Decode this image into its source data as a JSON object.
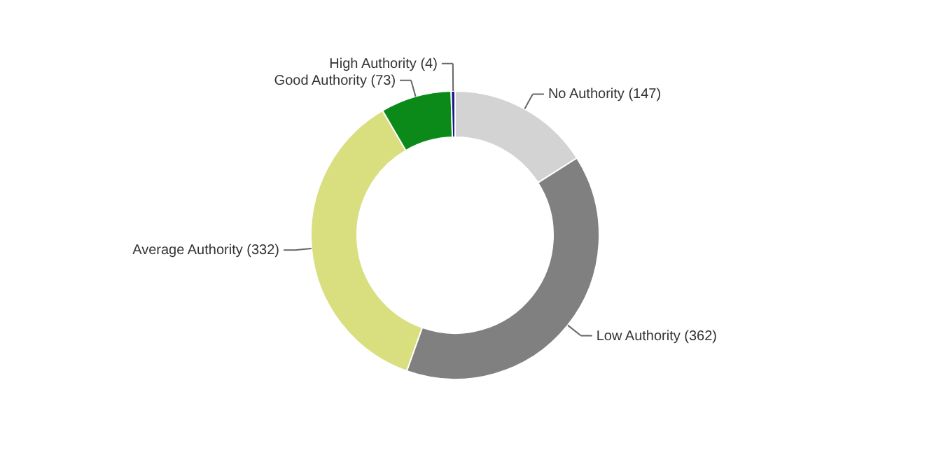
{
  "chart_data": {
    "type": "donut",
    "categories": [
      "No Authority",
      "Low Authority",
      "Average Authority",
      "Good Authority",
      "High Authority"
    ],
    "values": [
      147,
      362,
      332,
      73,
      4
    ],
    "value_labels": [
      "(147)",
      "(362)",
      "(332)",
      "(73)",
      "(4)"
    ],
    "colors": [
      "#d3d3d3",
      "#808080",
      "#d9df7f",
      "#0b8a1a",
      "#1a1a8c"
    ]
  }
}
